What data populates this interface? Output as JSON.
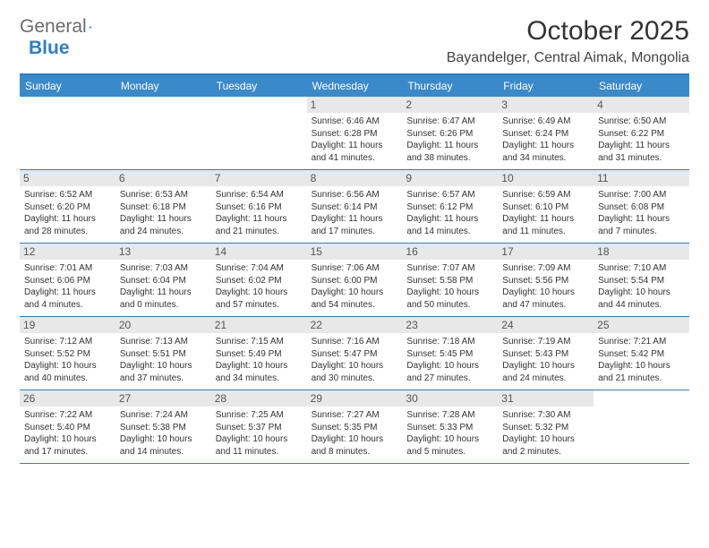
{
  "logo": {
    "text1": "General",
    "text2": "Blue"
  },
  "title": "October 2025",
  "location": "Bayandelger, Central Aimak, Mongolia",
  "daynames": [
    "Sunday",
    "Monday",
    "Tuesday",
    "Wednesday",
    "Thursday",
    "Friday",
    "Saturday"
  ],
  "colors": {
    "header_bar": "#3a89c9",
    "border": "#2f7fc1",
    "date_bg": "#e8e8e8",
    "text": "#333333",
    "logo_gray": "#6a6a6a"
  },
  "weeks": [
    [
      null,
      null,
      null,
      {
        "n": "1",
        "sr": "6:46 AM",
        "ss": "6:28 PM",
        "dl": "11 hours and 41 minutes."
      },
      {
        "n": "2",
        "sr": "6:47 AM",
        "ss": "6:26 PM",
        "dl": "11 hours and 38 minutes."
      },
      {
        "n": "3",
        "sr": "6:49 AM",
        "ss": "6:24 PM",
        "dl": "11 hours and 34 minutes."
      },
      {
        "n": "4",
        "sr": "6:50 AM",
        "ss": "6:22 PM",
        "dl": "11 hours and 31 minutes."
      }
    ],
    [
      {
        "n": "5",
        "sr": "6:52 AM",
        "ss": "6:20 PM",
        "dl": "11 hours and 28 minutes."
      },
      {
        "n": "6",
        "sr": "6:53 AM",
        "ss": "6:18 PM",
        "dl": "11 hours and 24 minutes."
      },
      {
        "n": "7",
        "sr": "6:54 AM",
        "ss": "6:16 PM",
        "dl": "11 hours and 21 minutes."
      },
      {
        "n": "8",
        "sr": "6:56 AM",
        "ss": "6:14 PM",
        "dl": "11 hours and 17 minutes."
      },
      {
        "n": "9",
        "sr": "6:57 AM",
        "ss": "6:12 PM",
        "dl": "11 hours and 14 minutes."
      },
      {
        "n": "10",
        "sr": "6:59 AM",
        "ss": "6:10 PM",
        "dl": "11 hours and 11 minutes."
      },
      {
        "n": "11",
        "sr": "7:00 AM",
        "ss": "6:08 PM",
        "dl": "11 hours and 7 minutes."
      }
    ],
    [
      {
        "n": "12",
        "sr": "7:01 AM",
        "ss": "6:06 PM",
        "dl": "11 hours and 4 minutes."
      },
      {
        "n": "13",
        "sr": "7:03 AM",
        "ss": "6:04 PM",
        "dl": "11 hours and 0 minutes."
      },
      {
        "n": "14",
        "sr": "7:04 AM",
        "ss": "6:02 PM",
        "dl": "10 hours and 57 minutes."
      },
      {
        "n": "15",
        "sr": "7:06 AM",
        "ss": "6:00 PM",
        "dl": "10 hours and 54 minutes."
      },
      {
        "n": "16",
        "sr": "7:07 AM",
        "ss": "5:58 PM",
        "dl": "10 hours and 50 minutes."
      },
      {
        "n": "17",
        "sr": "7:09 AM",
        "ss": "5:56 PM",
        "dl": "10 hours and 47 minutes."
      },
      {
        "n": "18",
        "sr": "7:10 AM",
        "ss": "5:54 PM",
        "dl": "10 hours and 44 minutes."
      }
    ],
    [
      {
        "n": "19",
        "sr": "7:12 AM",
        "ss": "5:52 PM",
        "dl": "10 hours and 40 minutes."
      },
      {
        "n": "20",
        "sr": "7:13 AM",
        "ss": "5:51 PM",
        "dl": "10 hours and 37 minutes."
      },
      {
        "n": "21",
        "sr": "7:15 AM",
        "ss": "5:49 PM",
        "dl": "10 hours and 34 minutes."
      },
      {
        "n": "22",
        "sr": "7:16 AM",
        "ss": "5:47 PM",
        "dl": "10 hours and 30 minutes."
      },
      {
        "n": "23",
        "sr": "7:18 AM",
        "ss": "5:45 PM",
        "dl": "10 hours and 27 minutes."
      },
      {
        "n": "24",
        "sr": "7:19 AM",
        "ss": "5:43 PM",
        "dl": "10 hours and 24 minutes."
      },
      {
        "n": "25",
        "sr": "7:21 AM",
        "ss": "5:42 PM",
        "dl": "10 hours and 21 minutes."
      }
    ],
    [
      {
        "n": "26",
        "sr": "7:22 AM",
        "ss": "5:40 PM",
        "dl": "10 hours and 17 minutes."
      },
      {
        "n": "27",
        "sr": "7:24 AM",
        "ss": "5:38 PM",
        "dl": "10 hours and 14 minutes."
      },
      {
        "n": "28",
        "sr": "7:25 AM",
        "ss": "5:37 PM",
        "dl": "10 hours and 11 minutes."
      },
      {
        "n": "29",
        "sr": "7:27 AM",
        "ss": "5:35 PM",
        "dl": "10 hours and 8 minutes."
      },
      {
        "n": "30",
        "sr": "7:28 AM",
        "ss": "5:33 PM",
        "dl": "10 hours and 5 minutes."
      },
      {
        "n": "31",
        "sr": "7:30 AM",
        "ss": "5:32 PM",
        "dl": "10 hours and 2 minutes."
      },
      null
    ]
  ],
  "labels": {
    "sunrise": "Sunrise:",
    "sunset": "Sunset:",
    "daylight": "Daylight:"
  }
}
